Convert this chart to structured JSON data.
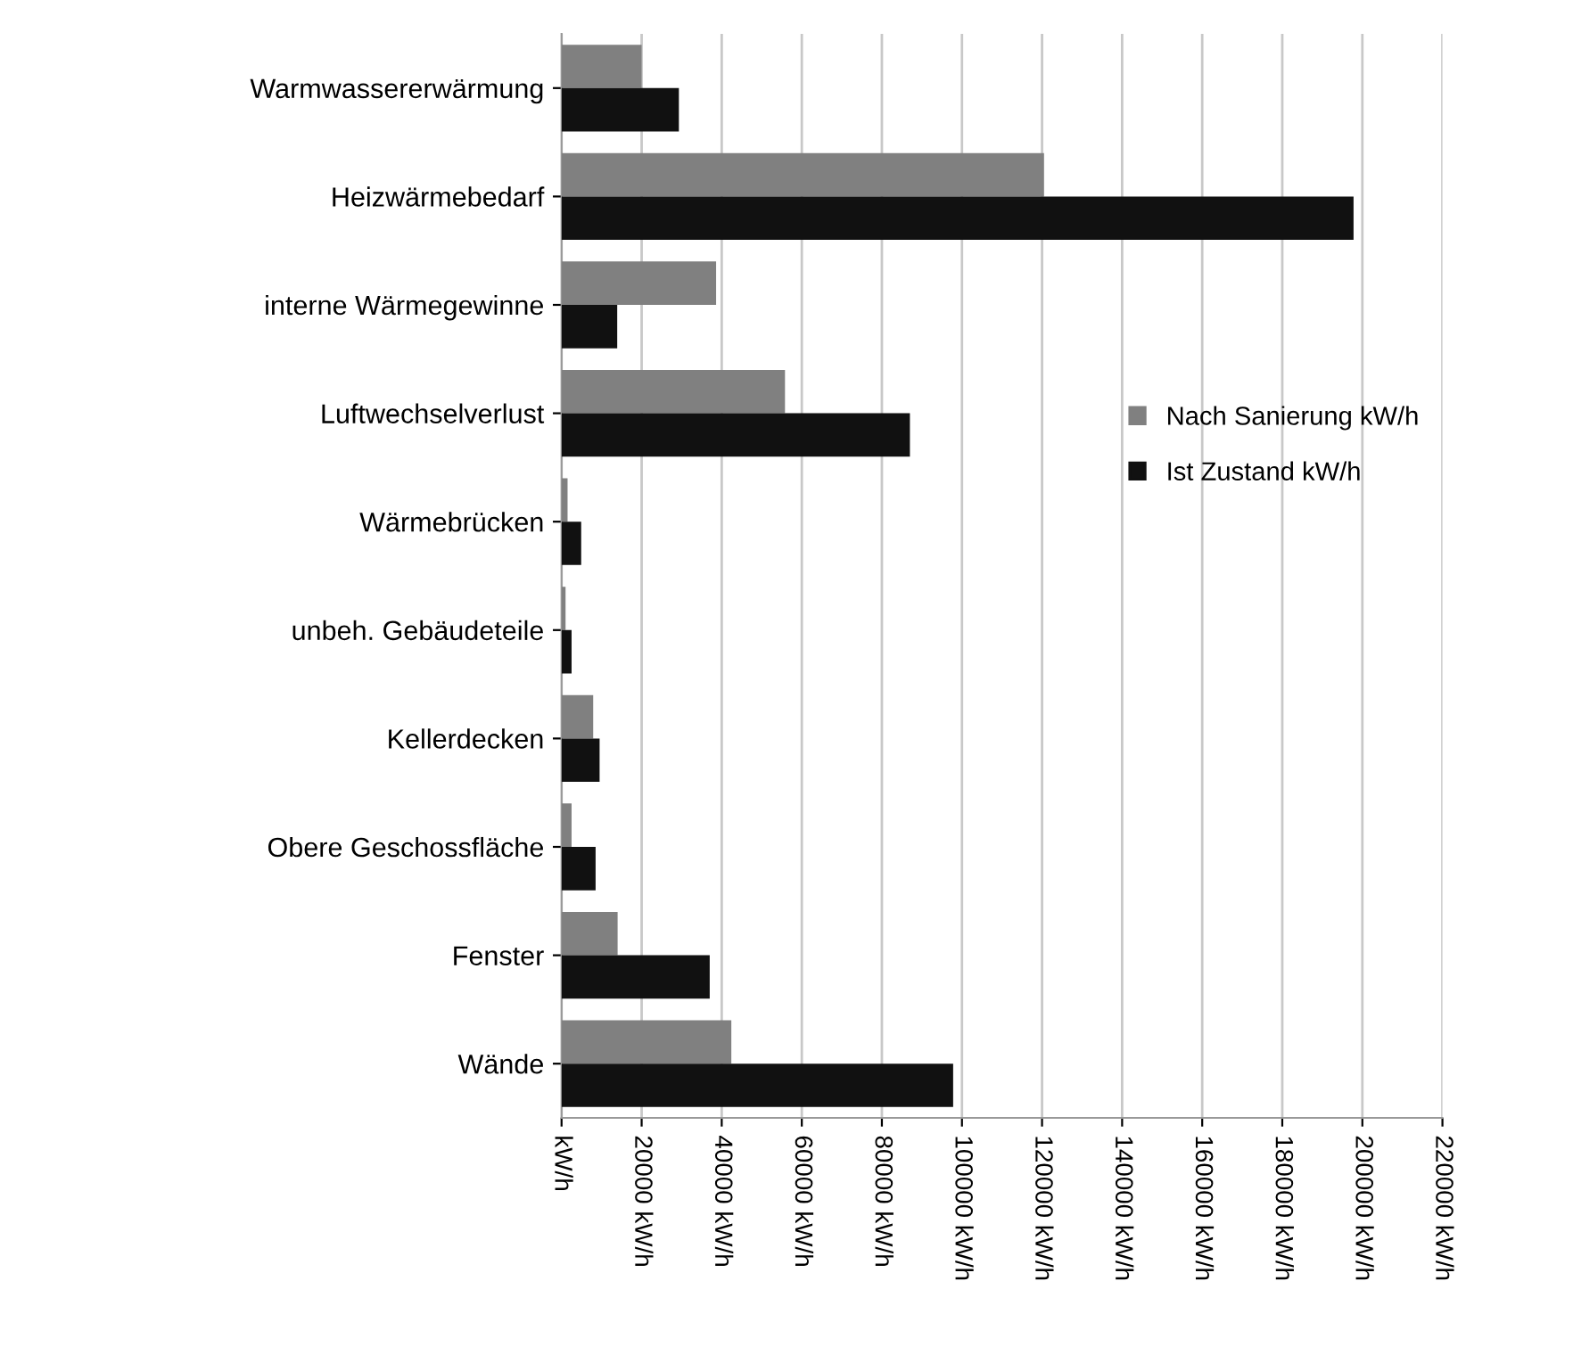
{
  "chart_data": {
    "type": "bar",
    "orientation": "horizontal",
    "categories": [
      "Warmwassererwärmung",
      "Heizwärmebedarf",
      "interne Wärmegewinne",
      "Luftwechselverlust",
      "Wärmebrücken",
      "unbeh. Gebäudeteile",
      "Kellerdecken",
      "Obere Geschossfläche",
      "Fenster",
      "Wände"
    ],
    "series": [
      {
        "name": "Nach Sanierung kW/h",
        "color": "#808080",
        "values": [
          20000,
          120500,
          38600,
          55800,
          1500,
          1000,
          7900,
          2500,
          14000,
          42400
        ]
      },
      {
        "name": "Ist Zustand kW/h",
        "color": "#111111",
        "values": [
          29300,
          197800,
          13900,
          87000,
          4900,
          2500,
          9500,
          8500,
          37000,
          97800
        ]
      }
    ],
    "xlim": [
      0,
      220000
    ],
    "xticks": [
      {
        "value": 0,
        "label": "kW/h"
      },
      {
        "value": 20000,
        "label": "20000 kW/h"
      },
      {
        "value": 40000,
        "label": "40000 kW/h"
      },
      {
        "value": 60000,
        "label": "60000 kW/h"
      },
      {
        "value": 80000,
        "label": "80000 kW/h"
      },
      {
        "value": 100000,
        "label": "100000 kW/h"
      },
      {
        "value": 120000,
        "label": "120000 kW/h"
      },
      {
        "value": 140000,
        "label": "140000 kW/h"
      },
      {
        "value": 160000,
        "label": "160000 kW/h"
      },
      {
        "value": 180000,
        "label": "180000 kW/h"
      },
      {
        "value": 200000,
        "label": "200000 kW/h"
      },
      {
        "value": 220000,
        "label": "220000 kW/h"
      }
    ],
    "grid": "x",
    "legend": "right"
  }
}
